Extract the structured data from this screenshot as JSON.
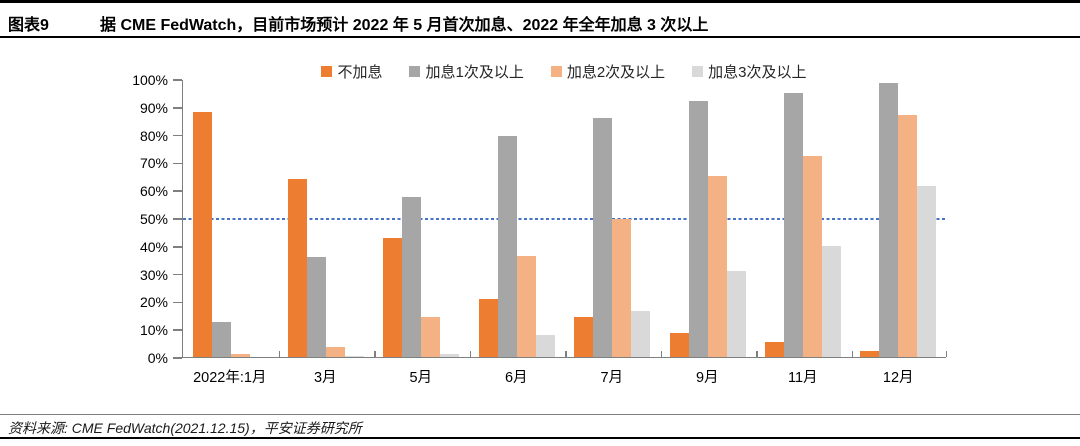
{
  "header": {
    "tag": "图表9",
    "title": "据 CME FedWatch，目前市场预计 2022 年 5 月首次加息、2022 年全年加息 3 次以上"
  },
  "chart_data": {
    "type": "bar",
    "title": "据 CME FedWatch，目前市场预计 2022 年 5 月首次加息、2022 年全年加息 3 次以上",
    "categories": [
      "2022年:1月",
      "3月",
      "5月",
      "6月",
      "7月",
      "9月",
      "11月",
      "12月"
    ],
    "series": [
      {
        "name": "不加息",
        "color": "#ED7D31",
        "values": [
          88,
          64,
          43,
          21,
          14.5,
          8.5,
          5.5,
          2
        ]
      },
      {
        "name": "加息1次及以上",
        "color": "#A6A6A6",
        "values": [
          12.5,
          36,
          57.5,
          79.5,
          86,
          92,
          95,
          98.5
        ]
      },
      {
        "name": "加息2次及以上",
        "color": "#F4B183",
        "values": [
          1,
          3.5,
          14.5,
          36.5,
          49.5,
          65,
          72.5,
          87
        ]
      },
      {
        "name": "加息3次及以上",
        "color": "#D9D9D9",
        "values": [
          0,
          0.5,
          1,
          8,
          16.5,
          31,
          40,
          61.5
        ]
      }
    ],
    "y_axis": {
      "min": 0,
      "max": 100,
      "step": 10,
      "tick_labels": [
        "0%",
        "10%",
        "20%",
        "30%",
        "40%",
        "50%",
        "60%",
        "70%",
        "80%",
        "90%",
        "100%"
      ]
    },
    "xlabel": "",
    "ylabel": "",
    "ylim": [
      0,
      100
    ],
    "grid": false,
    "legend_position": "top",
    "reference_line": {
      "value": 50,
      "color": "#4472C4",
      "style": "dotted"
    }
  },
  "footer": {
    "source": "资料来源: CME FedWatch(2021.12.15)，平安证券研究所"
  },
  "colors": {
    "series_no_hike": "#ED7D31",
    "series_hike1plus": "#A6A6A6",
    "series_hike2plus": "#F4B183",
    "series_hike3plus": "#D9D9D9",
    "reference_line_blue": "#4472C4",
    "axis_gray": "#7F7F7F",
    "rule_black": "#000000"
  }
}
